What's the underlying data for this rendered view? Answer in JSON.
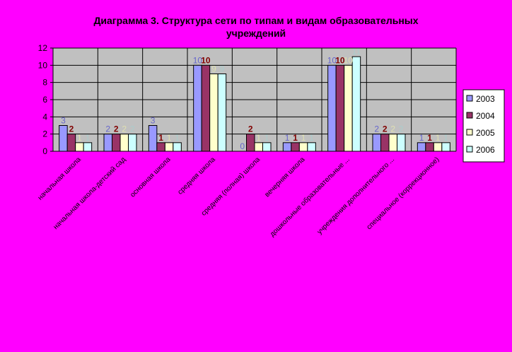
{
  "chart_data": {
    "type": "bar",
    "title": "Диаграмма 3. Структура сети по типам и видам образовательных учреждений",
    "categories": [
      "начальная школа",
      "начальная школа-детский сад",
      "основная школа",
      "средняя школа",
      "средняя (полная) школа",
      "вечерняя школа",
      "дошкольные образовательные ...",
      "учреждения дополнительного ...",
      "специальное (коррекционное)"
    ],
    "series": [
      {
        "name": "2003",
        "color": "#9999ff",
        "values": [
          3,
          2,
          3,
          10,
          0,
          1,
          10,
          2,
          1
        ]
      },
      {
        "name": "2004",
        "color": "#993366",
        "values": [
          2,
          2,
          1,
          10,
          2,
          1,
          10,
          2,
          1
        ]
      },
      {
        "name": "2005",
        "color": "#ffffcc",
        "values": [
          1,
          2,
          1,
          9,
          1,
          1,
          10,
          2,
          1
        ]
      },
      {
        "name": "2006",
        "color": "#ccffff",
        "values": [
          1,
          2,
          1,
          9,
          1,
          1,
          11,
          2,
          1
        ]
      }
    ],
    "label_colors": [
      "#6666cc",
      "#800000",
      "#e0e0b0",
      "#aacccc"
    ],
    "ylim": [
      0,
      12
    ],
    "yticks": [
      "0",
      "2",
      "4",
      "6",
      "8",
      "10",
      "12"
    ],
    "grid": true,
    "legend_position": "right",
    "plot_background": "#c0c0c0"
  }
}
